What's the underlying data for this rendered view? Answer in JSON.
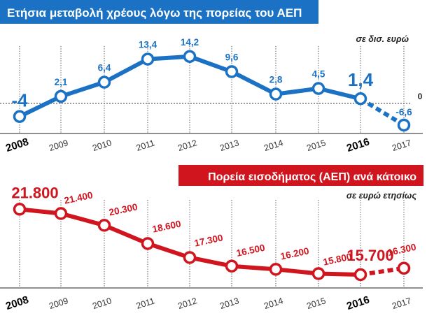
{
  "chart_data": [
    {
      "type": "line",
      "title": "Ετήσια μεταβολή χρέους λόγω της πορείας του ΑΕΠ",
      "unit_label": "σε δισ. ευρώ",
      "categories": [
        "2008",
        "2009",
        "2010",
        "2011",
        "2012",
        "2013",
        "2014",
        "2015",
        "2016",
        "2017"
      ],
      "series": [
        {
          "values": [
            -4,
            2.1,
            6.4,
            13.4,
            14.2,
            9.6,
            2.8,
            4.5,
            1.4,
            -6.6
          ],
          "labels": [
            "-4",
            "2,1",
            "6,4",
            "13,4",
            "14,2",
            "9,6",
            "2,8",
            "4,5",
            "1,4",
            "-6,6"
          ]
        }
      ],
      "zero_label": "0",
      "highlight_categories": [
        "2008",
        "2016"
      ],
      "dashed_segment_last": true,
      "color": "#1b72c4",
      "header_color": "#1b72c4"
    },
    {
      "type": "line",
      "title": "Πορεία εισοδήματος (ΑΕΠ) ανά κάτοικο",
      "unit_label": "σε ευρώ ετησίως",
      "categories": [
        "2008",
        "2009",
        "2010",
        "2011",
        "2012",
        "2013",
        "2014",
        "2015",
        "2016",
        "2017"
      ],
      "series": [
        {
          "values": [
            21800,
            21400,
            20300,
            18600,
            17300,
            16500,
            16200,
            15800,
            15700,
            16300
          ],
          "labels": [
            "21.800",
            "21.400",
            "20.300",
            "18.600",
            "17.300",
            "16.500",
            "16.200",
            "15.800",
            "15.700",
            "16.300"
          ]
        }
      ],
      "highlight_categories": [
        "2008",
        "2016"
      ],
      "dashed_segment_last": true,
      "color": "#d0151f",
      "header_color": "#d0151f"
    }
  ]
}
